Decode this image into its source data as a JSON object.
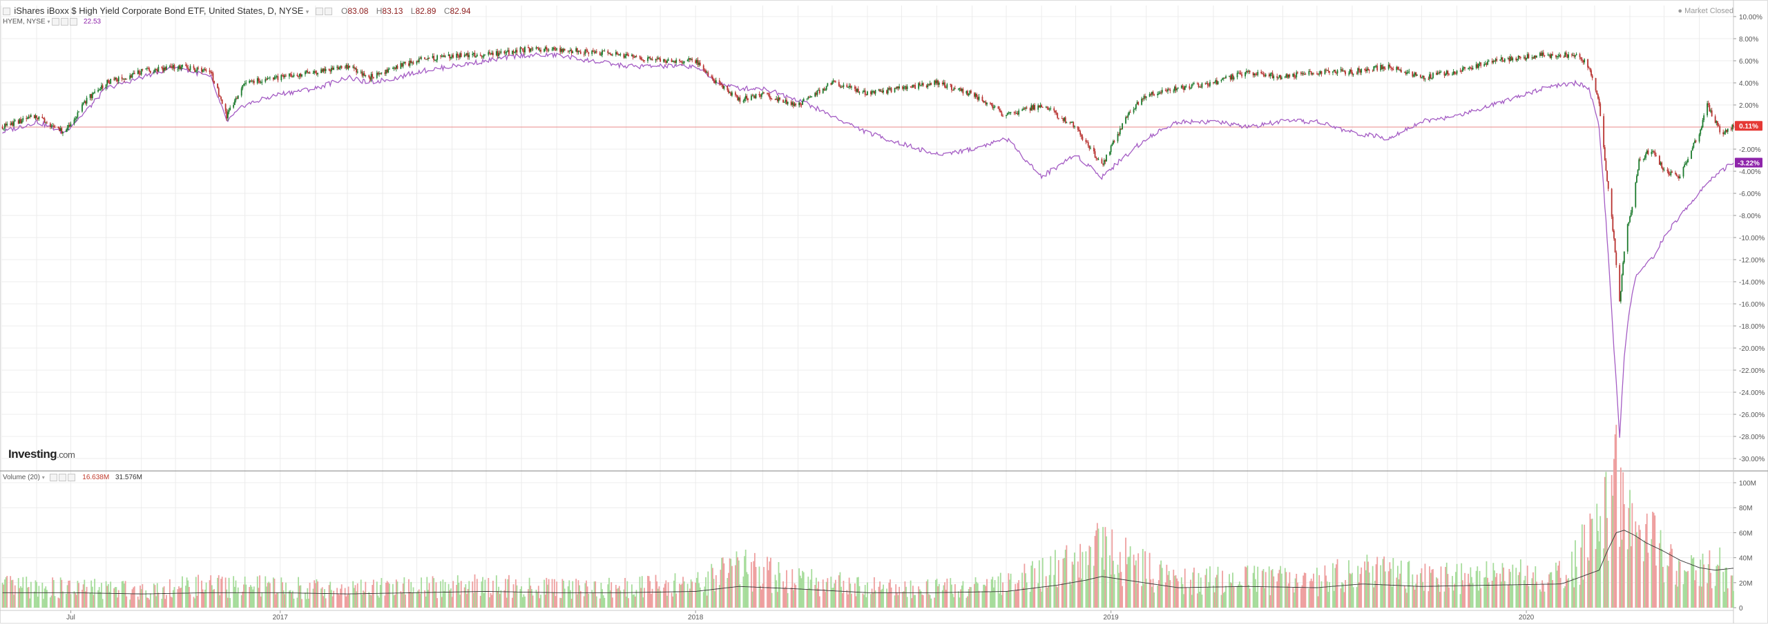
{
  "header": {
    "collapse_icon": "minus-box-icon",
    "main_title": "iShares iBoxx $ High Yield Corporate Bond ETF, United States, D, NYSE",
    "dropdown_icon": "chevron-down-icon",
    "ohlc": {
      "o_label": "O",
      "o_value": "83.08",
      "h_label": "H",
      "h_value": "83.13",
      "l_label": "L",
      "l_value": "82.89",
      "c_label": "C",
      "c_value": "82.94"
    },
    "compare_symbol": "HYEM, NYSE",
    "compare_value": "22.53",
    "market_status": "Market Closed",
    "volume_label": "Volume (20)",
    "volume_value": "16.638M",
    "volume_ma_value": "31.576M"
  },
  "logo": {
    "brand": "Investing",
    "suffix": ".com"
  },
  "colors": {
    "up_candle": "#1b7a2c",
    "down_candle": "#b8312f",
    "compare_line": "#a45cc4",
    "baseline": "#e88a8a",
    "vol_up": "#a6dc9b",
    "vol_down": "#ee9f9f",
    "vol_ma": "#333333",
    "grid": "#ececec",
    "price_badge": "#e53935",
    "compare_badge": "#8e24aa"
  },
  "chart_data": [
    {
      "type": "line",
      "title": "iShares iBoxx $ High Yield Corporate Bond ETF, United States, D, NYSE",
      "ylabel": "% change",
      "ylim": [
        -31,
        11
      ],
      "y_ticks": [
        "10.00%",
        "8.00%",
        "6.00%",
        "4.00%",
        "2.00%",
        "0.00%",
        "-2.00%",
        "-4.00%",
        "-6.00%",
        "-8.00%",
        "-10.00%",
        "-12.00%",
        "-14.00%",
        "-16.00%",
        "-18.00%",
        "-20.00%",
        "-22.00%",
        "-24.00%",
        "-26.00%",
        "-28.00%",
        "-30.00%"
      ],
      "y_tick_values": [
        10,
        8,
        6,
        4,
        2,
        0,
        -2,
        -4,
        -6,
        -8,
        -10,
        -12,
        -14,
        -16,
        -18,
        -20,
        -22,
        -24,
        -26,
        -28,
        -30
      ],
      "x_ticks": [
        "Jul",
        "2017",
        "2018",
        "2019",
        "2020"
      ],
      "x_tick_dates": [
        "2016-07-01",
        "2017-01-01",
        "2018-01-01",
        "2019-01-01",
        "2020-01-01"
      ],
      "x_range": [
        "2016-05-01",
        "2020-07-01"
      ],
      "baseline": 0,
      "grid": true,
      "series": [
        {
          "name": "",
          "style": "candles",
          "x": [
            "2016-05-01",
            "2016-06-01",
            "2016-06-25",
            "2016-07-15",
            "2016-08-01",
            "2016-09-01",
            "2016-10-01",
            "2016-11-01",
            "2016-11-15",
            "2016-12-01",
            "2017-01-01",
            "2017-02-01",
            "2017-03-01",
            "2017-03-20",
            "2017-04-15",
            "2017-05-01",
            "2017-06-01",
            "2017-07-01",
            "2017-08-01",
            "2017-09-01",
            "2017-10-01",
            "2017-11-01",
            "2017-12-01",
            "2018-01-01",
            "2018-01-20",
            "2018-02-08",
            "2018-03-01",
            "2018-04-01",
            "2018-05-01",
            "2018-06-01",
            "2018-07-01",
            "2018-08-01",
            "2018-09-01",
            "2018-10-01",
            "2018-11-01",
            "2018-12-01",
            "2018-12-24",
            "2019-01-15",
            "2019-02-01",
            "2019-03-01",
            "2019-04-01",
            "2019-05-01",
            "2019-06-01",
            "2019-07-01",
            "2019-08-01",
            "2019-09-01",
            "2019-10-01",
            "2019-11-01",
            "2019-12-01",
            "2020-01-15",
            "2020-02-15",
            "2020-02-25",
            "2020-03-05",
            "2020-03-12",
            "2020-03-18",
            "2020-03-23",
            "2020-03-28",
            "2020-04-05",
            "2020-04-09",
            "2020-04-20",
            "2020-05-01",
            "2020-05-15",
            "2020-06-01",
            "2020-06-08",
            "2020-06-20",
            "2020-07-01"
          ],
          "values": [
            0.0,
            1.0,
            -0.5,
            2.5,
            4.0,
            5.0,
            5.5,
            5.0,
            1.0,
            4.0,
            4.5,
            5.0,
            5.5,
            4.5,
            5.5,
            6.0,
            6.5,
            6.5,
            7.0,
            7.0,
            6.8,
            6.5,
            6.0,
            6.0,
            4.0,
            2.5,
            3.0,
            2.0,
            4.0,
            3.0,
            3.5,
            4.0,
            3.0,
            1.0,
            2.0,
            0.0,
            -3.5,
            1.0,
            3.0,
            3.5,
            4.0,
            5.0,
            4.5,
            5.0,
            5.0,
            5.5,
            4.5,
            5.0,
            6.0,
            6.5,
            6.5,
            5.5,
            2.0,
            -5.0,
            -10.0,
            -16.0,
            -10.0,
            -6.0,
            -3.0,
            -2.0,
            -4.0,
            -4.5,
            -0.5,
            2.0,
            -0.5,
            0.11
          ]
        },
        {
          "name": "HYEM, NYSE",
          "style": "line",
          "x": [
            "2016-05-01",
            "2016-06-01",
            "2016-06-25",
            "2016-07-15",
            "2016-08-01",
            "2016-09-01",
            "2016-10-01",
            "2016-11-01",
            "2016-11-15",
            "2016-12-01",
            "2017-01-01",
            "2017-02-01",
            "2017-03-01",
            "2017-03-20",
            "2017-04-15",
            "2017-05-01",
            "2017-06-01",
            "2017-07-01",
            "2017-08-01",
            "2017-09-01",
            "2017-10-01",
            "2017-11-01",
            "2017-12-01",
            "2018-01-01",
            "2018-01-20",
            "2018-02-08",
            "2018-03-01",
            "2018-04-01",
            "2018-05-01",
            "2018-06-01",
            "2018-07-01",
            "2018-08-01",
            "2018-09-01",
            "2018-10-01",
            "2018-11-01",
            "2018-12-01",
            "2018-12-24",
            "2019-01-15",
            "2019-02-01",
            "2019-03-01",
            "2019-04-01",
            "2019-05-01",
            "2019-06-01",
            "2019-07-01",
            "2019-08-01",
            "2019-09-01",
            "2019-10-01",
            "2019-11-01",
            "2019-12-01",
            "2020-01-15",
            "2020-02-15",
            "2020-02-25",
            "2020-03-05",
            "2020-03-12",
            "2020-03-18",
            "2020-03-23",
            "2020-03-28",
            "2020-04-05",
            "2020-04-09",
            "2020-04-20",
            "2020-05-01",
            "2020-05-15",
            "2020-06-01",
            "2020-06-08",
            "2020-06-20",
            "2020-07-01"
          ],
          "values": [
            -0.5,
            0.5,
            -0.5,
            1.5,
            3.5,
            4.5,
            5.5,
            4.5,
            0.5,
            2.0,
            3.0,
            3.5,
            4.5,
            4.0,
            4.5,
            5.0,
            5.5,
            6.0,
            6.5,
            6.5,
            6.0,
            5.5,
            5.5,
            5.5,
            4.0,
            3.5,
            3.5,
            2.5,
            1.0,
            -0.5,
            -1.5,
            -2.5,
            -2.0,
            -1.0,
            -4.5,
            -2.5,
            -4.5,
            -2.5,
            -1.0,
            0.5,
            0.5,
            0.0,
            0.5,
            0.5,
            -0.5,
            -1.0,
            0.5,
            1.0,
            2.0,
            3.5,
            4.0,
            3.5,
            0.0,
            -10.0,
            -20.0,
            -28.0,
            -19.0,
            -14.0,
            -13.0,
            -12.0,
            -10.0,
            -8.0,
            -6.0,
            -5.0,
            -4.0,
            -3.22
          ]
        }
      ],
      "last_value_badges": [
        "0.11%",
        "-3.22%"
      ]
    },
    {
      "type": "bar",
      "title": "Volume (20)",
      "ylim": [
        0,
        105
      ],
      "y_ticks": [
        "100M",
        "80M",
        "60M",
        "40M",
        "20M",
        "0"
      ],
      "y_tick_values": [
        100,
        80,
        60,
        40,
        20,
        0
      ],
      "unit": "M",
      "x_range": [
        "2016-05-01",
        "2020-07-01"
      ],
      "series": [
        {
          "name": "Volume",
          "x": [
            "2016-05-01",
            "2016-07-01",
            "2016-09-01",
            "2016-11-01",
            "2017-01-01",
            "2017-03-01",
            "2017-05-01",
            "2017-07-01",
            "2017-09-01",
            "2017-11-01",
            "2018-01-01",
            "2018-02-08",
            "2018-04-01",
            "2018-06-01",
            "2018-08-01",
            "2018-10-01",
            "2018-11-15",
            "2018-12-10",
            "2018-12-24",
            "2019-01-15",
            "2019-03-01",
            "2019-05-01",
            "2019-07-01",
            "2019-08-10",
            "2019-10-01",
            "2019-12-01",
            "2020-02-01",
            "2020-03-05",
            "2020-03-12",
            "2020-03-20",
            "2020-03-27",
            "2020-04-05",
            "2020-04-15",
            "2020-05-01",
            "2020-05-15",
            "2020-06-01",
            "2020-06-15",
            "2020-07-01"
          ],
          "values": [
            16,
            15,
            14,
            17,
            16,
            14,
            16,
            18,
            15,
            16,
            18,
            30,
            22,
            16,
            15,
            18,
            30,
            40,
            45,
            35,
            20,
            22,
            20,
            30,
            22,
            24,
            26,
            55,
            80,
            95,
            70,
            50,
            55,
            40,
            35,
            30,
            35,
            16.638
          ]
        },
        {
          "name": "Volume MA (20)",
          "x": [
            "2016-05-01",
            "2016-07-01",
            "2016-09-01",
            "2016-11-01",
            "2017-01-01",
            "2017-03-01",
            "2017-05-01",
            "2017-07-01",
            "2017-09-01",
            "2017-11-01",
            "2018-01-01",
            "2018-02-08",
            "2018-04-01",
            "2018-06-01",
            "2018-08-01",
            "2018-10-01",
            "2018-11-15",
            "2018-12-10",
            "2018-12-24",
            "2019-01-15",
            "2019-03-01",
            "2019-05-01",
            "2019-07-01",
            "2019-08-10",
            "2019-10-01",
            "2019-12-01",
            "2020-02-01",
            "2020-03-05",
            "2020-03-12",
            "2020-03-20",
            "2020-03-27",
            "2020-04-05",
            "2020-04-15",
            "2020-05-01",
            "2020-05-15",
            "2020-06-01",
            "2020-06-15",
            "2020-07-01"
          ],
          "values": [
            12,
            12,
            11,
            12,
            12,
            11,
            12,
            13,
            12,
            12,
            13,
            17,
            15,
            12,
            12,
            13,
            18,
            22,
            25,
            22,
            16,
            17,
            16,
            19,
            17,
            18,
            19,
            30,
            45,
            60,
            62,
            58,
            52,
            45,
            38,
            32,
            30,
            31.576
          ]
        }
      ]
    }
  ]
}
